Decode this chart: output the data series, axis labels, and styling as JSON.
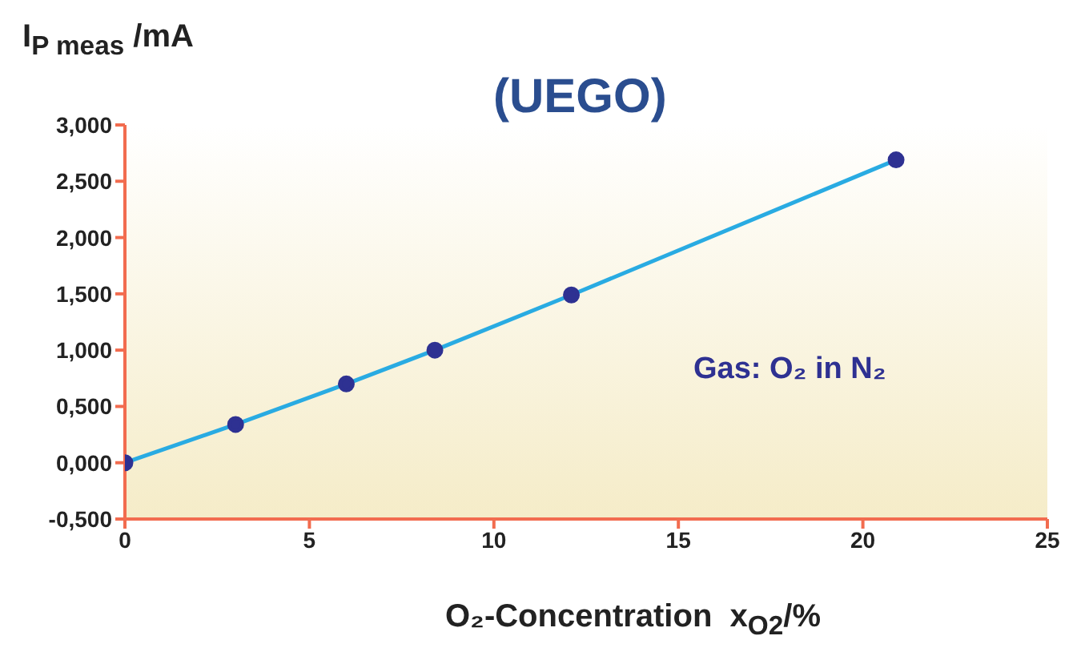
{
  "chart_data": {
    "type": "line",
    "title": "(UEGO)",
    "xlabel": "O₂-Concentration  x$_{O2}$/%",
    "ylabel": "I$_{P meas}$ /mA",
    "annotations": [
      "Gas: O₂ in N₂"
    ],
    "x": [
      0,
      3,
      6,
      8.4,
      12.1,
      20.9
    ],
    "series": [
      {
        "color": "#29abe2",
        "values": [
          0,
          0.34,
          0.7,
          1.0,
          1.49,
          2.69
        ]
      }
    ],
    "xlim": [
      0,
      25
    ],
    "xticks": [
      0,
      5,
      10,
      15,
      20,
      25
    ],
    "ylim": [
      -0.5,
      3
    ],
    "yticks": [
      {
        "value": -0.5,
        "label": "-0,500"
      },
      {
        "value": 0,
        "label": "0,000"
      },
      {
        "value": 0.5,
        "label": "0,500"
      },
      {
        "value": 1,
        "label": "1,000"
      },
      {
        "value": 1.5,
        "label": "1,500"
      },
      {
        "value": 2,
        "label": "2,000"
      },
      {
        "value": 2.5,
        "label": "2,500"
      },
      {
        "value": 3,
        "label": "3,000"
      }
    ],
    "marker": "circle",
    "line_style": "solid"
  }
}
